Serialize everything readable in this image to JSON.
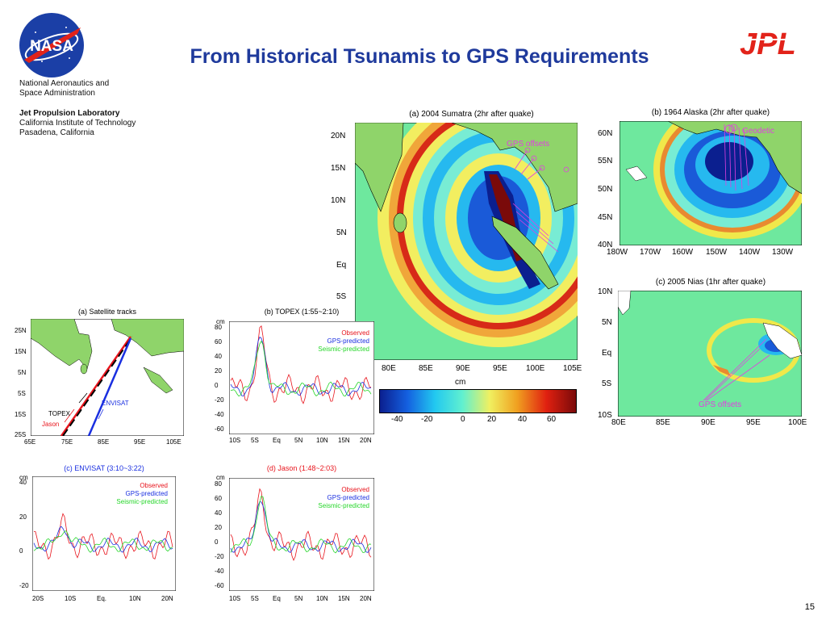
{
  "header": {
    "title": "From Historical Tsunamis to GPS Requirements",
    "nasa_logo_text": "NASA",
    "jpl_logo_text": "JPL",
    "org_lines": [
      "National Aeronautics and",
      "Space Administration"
    ],
    "jpl_lines": [
      "Jet Propulsion Laboratory",
      "California Institute of Technology",
      "Pasadena, California"
    ],
    "page_number": "15"
  },
  "maps": {
    "sumatra": {
      "title": "(a) 2004 Sumatra (2hr after quake)",
      "annotation": "GPS offsets",
      "lat_ticks": [
        "20N",
        "15N",
        "10N",
        "5N",
        "Eq",
        "5S"
      ],
      "lon_ticks": [
        "80E",
        "85E",
        "90E",
        "95E",
        "100E",
        "105E"
      ]
    },
    "alaska": {
      "title": "(b) 1964 Alaska (2hr after quake)",
      "annotation": "Geodetic",
      "lat_ticks": [
        "60N",
        "55N",
        "50N",
        "45N",
        "40N"
      ],
      "lon_ticks": [
        "180W",
        "170W",
        "160W",
        "150W",
        "140W",
        "130W"
      ]
    },
    "nias": {
      "title": "(c) 2005 Nias (1hr after quake)",
      "annotation": "GPS offsets",
      "lat_ticks": [
        "10N",
        "5N",
        "Eq",
        "5S",
        "10S"
      ],
      "lon_ticks": [
        "80E",
        "85E",
        "90E",
        "95E",
        "100E"
      ]
    },
    "colorbar": {
      "unit": "cm",
      "ticks": [
        "-40",
        "-20",
        "0",
        "20",
        "40",
        "60"
      ],
      "colors": [
        "#0b1f8f",
        "#1460e0",
        "#22c8f0",
        "#60f0d0",
        "#f0f060",
        "#f0a020",
        "#e02010",
        "#7a0a0a"
      ]
    }
  },
  "satellite": {
    "title": "(a) Satellite tracks",
    "lat_ticks": [
      "25N",
      "15N",
      "5N",
      "5S",
      "15S",
      "25S"
    ],
    "lon_ticks": [
      "65E",
      "75E",
      "85E",
      "95E",
      "105E"
    ],
    "labels": {
      "topex": "TOPEX",
      "jason": "Jason",
      "envisat": "ENVISAT"
    }
  },
  "legend": {
    "observed": "Observed",
    "gps": "GPS-predicted",
    "seismic": "Seismic-predicted"
  },
  "colors": {
    "observed": "#e8141c",
    "gps": "#1a2fe0",
    "seismic": "#26d62a",
    "title_blue": "#1f3a9c",
    "ocean": "#6ee89e",
    "land": "#8fd46a"
  },
  "timeseries": [
    {
      "id": "topex",
      "title": "(b) TOPEX (1:55~2:10)",
      "title_color": "#000000",
      "unit": "cm",
      "y_ticks": [
        "80",
        "60",
        "40",
        "20",
        "0",
        "-20",
        "-40",
        "-60"
      ],
      "x_ticks": [
        "10S",
        "5S",
        "Eq",
        "5N",
        "10N",
        "15N",
        "20N"
      ]
    },
    {
      "id": "envisat",
      "title": "(c) ENVISAT (3:10~3:22)",
      "title_color": "#1a2fe0",
      "unit": "cm",
      "y_ticks": [
        "40",
        "20",
        "0",
        "-20"
      ],
      "x_ticks": [
        "20S",
        "10S",
        "Eq.",
        "10N",
        "20N"
      ]
    },
    {
      "id": "jason",
      "title": "(d) Jason (1:48~2:03)",
      "title_color": "#e8141c",
      "unit": "cm",
      "y_ticks": [
        "80",
        "60",
        "40",
        "20",
        "0",
        "-20",
        "-40",
        "-60"
      ],
      "x_ticks": [
        "10S",
        "5S",
        "Eq",
        "5N",
        "10N",
        "15N",
        "20N"
      ]
    }
  ]
}
